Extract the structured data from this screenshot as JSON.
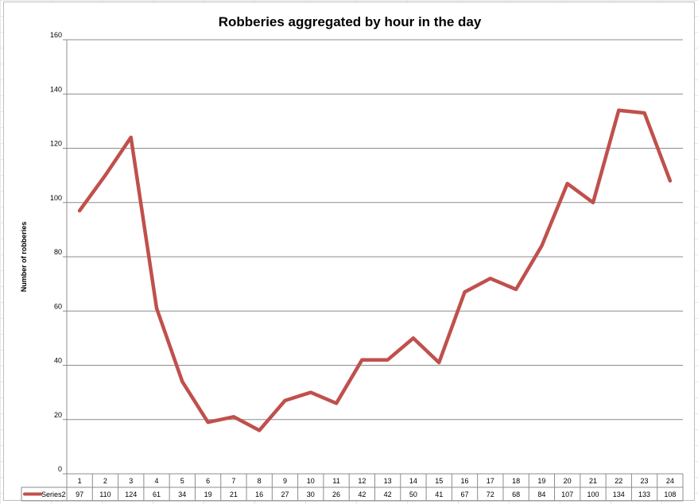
{
  "chart_data": {
    "type": "line",
    "title": "Robberies aggregated by hour in the day",
    "xlabel": "",
    "ylabel": "Number of robberies",
    "ylim": [
      0,
      160
    ],
    "yticks": [
      0,
      20,
      40,
      60,
      80,
      100,
      120,
      140,
      160
    ],
    "grid": true,
    "legend": "data-table-left",
    "categories": [
      "1",
      "2",
      "3",
      "4",
      "5",
      "6",
      "7",
      "8",
      "9",
      "10",
      "11",
      "12",
      "13",
      "14",
      "15",
      "16",
      "17",
      "18",
      "19",
      "20",
      "21",
      "22",
      "23",
      "24"
    ],
    "series": [
      {
        "name": "Series2",
        "color": "#c0504d",
        "values": [
          97,
          110,
          124,
          61,
          34,
          19,
          21,
          16,
          27,
          30,
          26,
          42,
          42,
          50,
          41,
          67,
          72,
          68,
          84,
          107,
          100,
          134,
          133,
          108
        ]
      }
    ]
  }
}
